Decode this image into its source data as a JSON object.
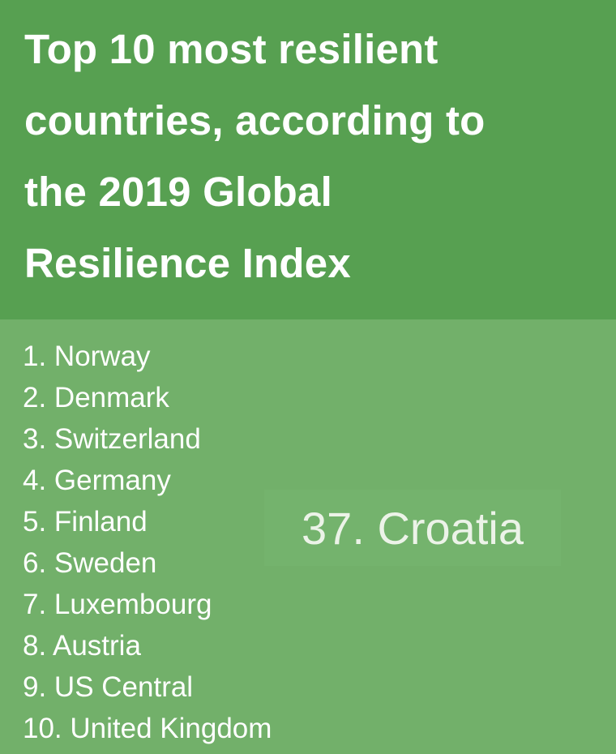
{
  "header": {
    "title_lines": [
      "Top 10 most resilient",
      "countries, according to",
      "the 2019 Global",
      "Resilience Index"
    ]
  },
  "rankings": [
    "1. Norway",
    "2. Denmark",
    "3. Switzerland",
    "4. Germany",
    "5. Finland",
    "6. Sweden",
    "7. Luxembourg",
    "8. Austria",
    "9. US Central",
    "10. United Kingdom"
  ],
  "highlight": {
    "text": "37. Croatia"
  },
  "colors": {
    "header_background": "#57a051",
    "body_background": "#72b06a",
    "text": "#ffffff"
  }
}
